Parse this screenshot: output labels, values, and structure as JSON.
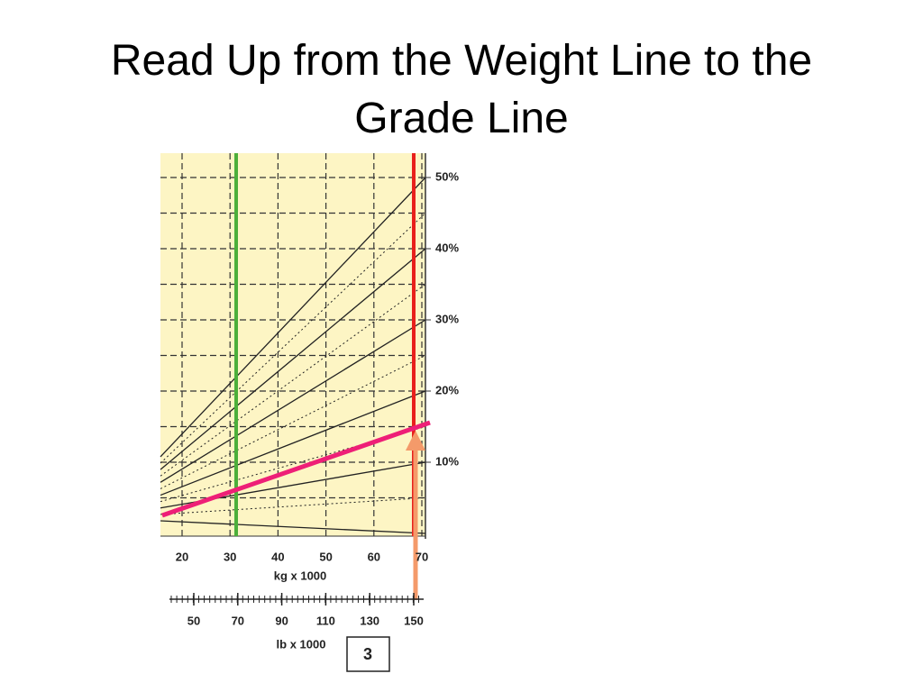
{
  "slide": {
    "title": "Read Up from the Weight Line to the Grade Line"
  },
  "chart": {
    "grade_ticks": [
      "50%",
      "40%",
      "30%",
      "20%",
      "10%"
    ],
    "kg_ticks": [
      20,
      30,
      40,
      50,
      60,
      70
    ],
    "kg_label": "kg x 1000",
    "lb_ticks": [
      50,
      70,
      90,
      110,
      130,
      150
    ],
    "lb_label": "lb x 1000",
    "badge": "3"
  }
}
